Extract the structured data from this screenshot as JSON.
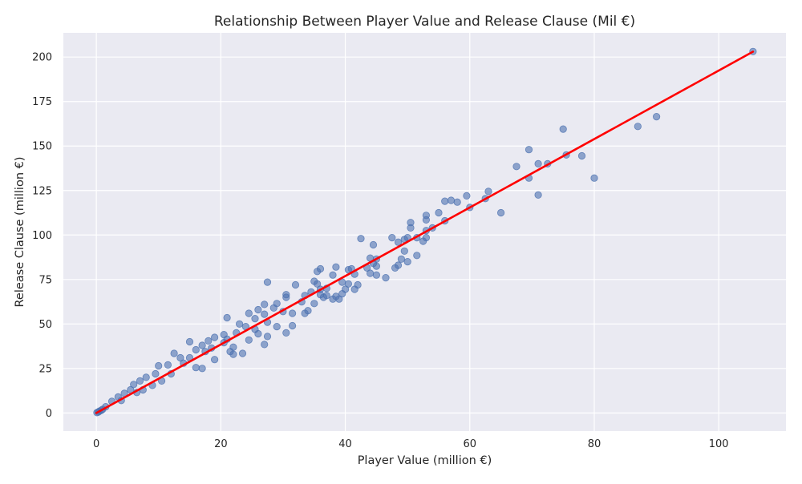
{
  "chart_data": {
    "type": "scatter",
    "title": "Relationship Between Player Value and Release Clause (Mil €)",
    "xlabel": "Player Value (million €)",
    "ylabel": "Release Clause (million €)",
    "xlim": [
      -5.3,
      110.8
    ],
    "ylim": [
      -10.2,
      213.6
    ],
    "x_ticks": [
      0,
      20,
      40,
      60,
      80,
      100
    ],
    "y_ticks": [
      0,
      25,
      50,
      75,
      100,
      125,
      150,
      175,
      200
    ],
    "grid": true,
    "legend": "none",
    "colors": {
      "background": "#eaeaf2",
      "grid": "#ffffff",
      "points": "#4c72b0",
      "trendline": "#ff0000"
    },
    "series": [
      {
        "type": "scatter",
        "points": [
          [
            105.5,
            203.1
          ],
          [
            90.0,
            166.5
          ],
          [
            87.0,
            161.0
          ],
          [
            75.0,
            159.5
          ],
          [
            75.5,
            145.0
          ],
          [
            78.0,
            144.5
          ],
          [
            69.5,
            148.0
          ],
          [
            67.5,
            138.5
          ],
          [
            71.0,
            140.0
          ],
          [
            72.5,
            140.0
          ],
          [
            69.5,
            132.0
          ],
          [
            80.0,
            132.0
          ],
          [
            71.0,
            122.5
          ],
          [
            63.0,
            124.5
          ],
          [
            62.5,
            120.5
          ],
          [
            59.5,
            122.0
          ],
          [
            58.0,
            118.5
          ],
          [
            57.0,
            119.5
          ],
          [
            56.0,
            119.0
          ],
          [
            60.0,
            115.5
          ],
          [
            65.0,
            112.5
          ],
          [
            55.0,
            112.5
          ],
          [
            53.0,
            111.0
          ],
          [
            53.0,
            108.5
          ],
          [
            56.0,
            108.0
          ],
          [
            50.5,
            107.0
          ],
          [
            50.5,
            104.0
          ],
          [
            54.0,
            104.0
          ],
          [
            53.0,
            102.5
          ],
          [
            51.5,
            98.5
          ],
          [
            48.5,
            96.0
          ],
          [
            49.5,
            97.5
          ],
          [
            52.5,
            96.5
          ],
          [
            53.0,
            98.5
          ],
          [
            50.0,
            98.5
          ],
          [
            47.5,
            98.5
          ],
          [
            42.5,
            98.0
          ],
          [
            44.5,
            94.5
          ],
          [
            49.5,
            91.0
          ],
          [
            51.5,
            88.5
          ],
          [
            49.0,
            86.5
          ],
          [
            50.0,
            85.0
          ],
          [
            44.0,
            87.0
          ],
          [
            45.0,
            86.5
          ],
          [
            44.5,
            84.0
          ],
          [
            45.0,
            82.5
          ],
          [
            43.5,
            81.5
          ],
          [
            48.0,
            81.5
          ],
          [
            48.5,
            83.0
          ],
          [
            38.5,
            82.0
          ],
          [
            40.5,
            80.5
          ],
          [
            41.0,
            81.0
          ],
          [
            36.0,
            81.0
          ],
          [
            35.5,
            79.5
          ],
          [
            41.5,
            78.0
          ],
          [
            44.0,
            78.5
          ],
          [
            45.0,
            77.5
          ],
          [
            46.5,
            76.0
          ],
          [
            38.0,
            77.5
          ],
          [
            35.0,
            74.0
          ],
          [
            35.5,
            72.5
          ],
          [
            39.5,
            73.5
          ],
          [
            40.5,
            72.5
          ],
          [
            42.0,
            72.0
          ],
          [
            36.0,
            69.5
          ],
          [
            37.0,
            70.0
          ],
          [
            40.0,
            69.5
          ],
          [
            41.5,
            69.5
          ],
          [
            39.5,
            67.0
          ],
          [
            37.0,
            66.0
          ],
          [
            38.5,
            65.5
          ],
          [
            38.0,
            64.0
          ],
          [
            39.0,
            64.0
          ],
          [
            36.5,
            65.0
          ],
          [
            36.0,
            66.5
          ],
          [
            34.5,
            68.0
          ],
          [
            33.5,
            66.0
          ],
          [
            32.0,
            72.0
          ],
          [
            30.5,
            66.5
          ],
          [
            30.5,
            65.0
          ],
          [
            33.0,
            62.5
          ],
          [
            35.0,
            61.5
          ],
          [
            34.0,
            57.5
          ],
          [
            31.5,
            56.0
          ],
          [
            33.5,
            56.0
          ],
          [
            30.0,
            57.0
          ],
          [
            27.5,
            73.5
          ],
          [
            27.0,
            61.0
          ],
          [
            29.0,
            61.5
          ],
          [
            28.5,
            59.0
          ],
          [
            26.0,
            58.0
          ],
          [
            27.0,
            55.5
          ],
          [
            24.5,
            56.0
          ],
          [
            25.5,
            53.0
          ],
          [
            27.5,
            51.0
          ],
          [
            29.0,
            48.5
          ],
          [
            30.5,
            45.0
          ],
          [
            31.5,
            49.0
          ],
          [
            21.0,
            53.5
          ],
          [
            23.0,
            50.0
          ],
          [
            24.0,
            48.5
          ],
          [
            25.5,
            47.0
          ],
          [
            26.0,
            44.5
          ],
          [
            27.5,
            43.0
          ],
          [
            27.0,
            38.5
          ],
          [
            24.5,
            41.0
          ],
          [
            22.0,
            37.0
          ],
          [
            23.5,
            33.5
          ],
          [
            21.5,
            34.5
          ],
          [
            20.5,
            39.5
          ],
          [
            19.0,
            42.5
          ],
          [
            18.0,
            40.5
          ],
          [
            17.0,
            38.0
          ],
          [
            15.0,
            40.0
          ],
          [
            17.5,
            34.5
          ],
          [
            16.0,
            35.5
          ],
          [
            15.0,
            31.0
          ],
          [
            13.5,
            31.0
          ],
          [
            12.5,
            33.5
          ],
          [
            11.5,
            27.0
          ],
          [
            10.0,
            26.5
          ],
          [
            9.5,
            22.0
          ],
          [
            8.0,
            20.0
          ],
          [
            7.0,
            18.0
          ],
          [
            6.0,
            16.0
          ],
          [
            5.5,
            13.0
          ],
          [
            4.5,
            11.0
          ],
          [
            3.5,
            9.0
          ],
          [
            2.5,
            6.5
          ],
          [
            1.5,
            3.5
          ],
          [
            1.0,
            2.0
          ],
          [
            0.5,
            1.0
          ],
          [
            0.1,
            0.2
          ],
          [
            0.3,
            0.5
          ],
          [
            0.8,
            1.5
          ],
          [
            16.0,
            25.5
          ],
          [
            17.0,
            25.0
          ],
          [
            19.0,
            30.0
          ],
          [
            22.0,
            33.0
          ],
          [
            21.0,
            41.5
          ],
          [
            20.5,
            44.0
          ],
          [
            22.5,
            45.0
          ],
          [
            18.5,
            36.5
          ],
          [
            14.0,
            28.0
          ],
          [
            12.0,
            22.0
          ],
          [
            10.5,
            18.0
          ],
          [
            9.0,
            15.5
          ],
          [
            7.5,
            13.0
          ],
          [
            6.5,
            11.5
          ],
          [
            4.0,
            7.0
          ]
        ]
      },
      {
        "type": "line",
        "points": [
          [
            0,
            0.0
          ],
          [
            105.5,
            203.0
          ]
        ]
      }
    ]
  }
}
